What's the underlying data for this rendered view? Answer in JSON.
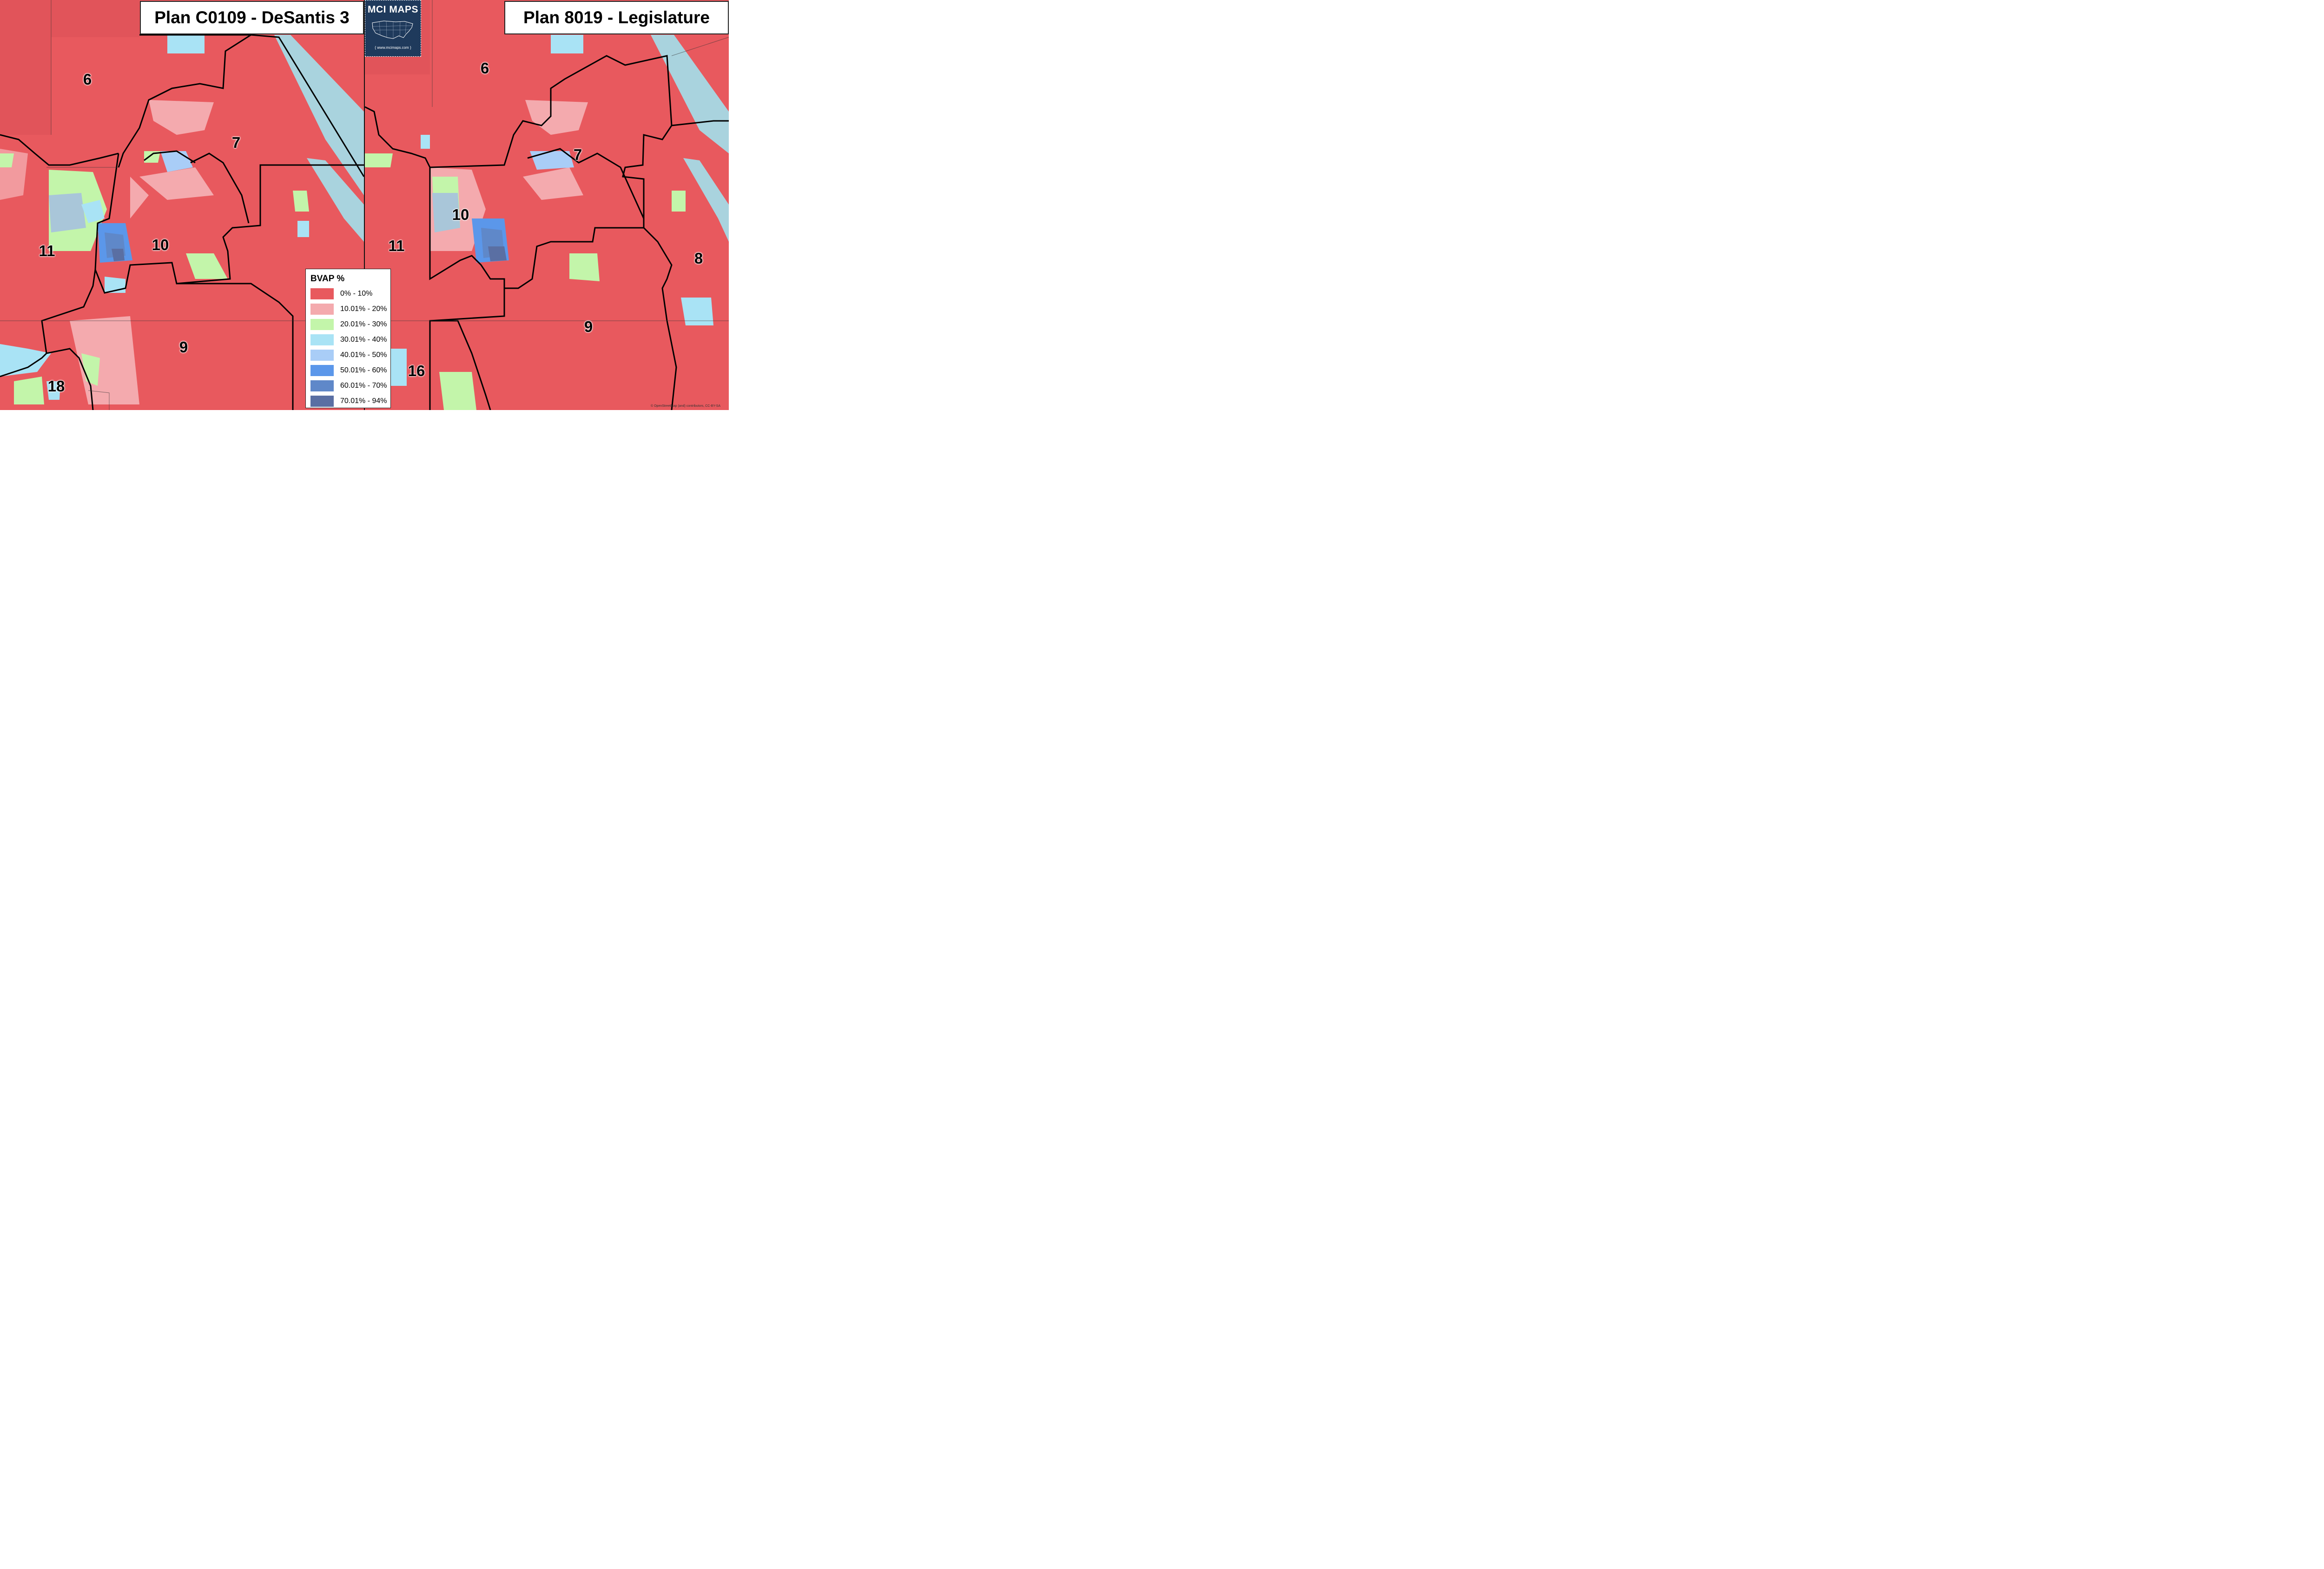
{
  "titles": {
    "left": "Plan C0109 - DeSantis 3",
    "right": "Plan 8019 - Legislature"
  },
  "logo": {
    "title": "MCI MAPS",
    "url": "{ www.mcimaps.com }"
  },
  "left_districts": [
    "6",
    "7",
    "10",
    "11",
    "9",
    "18"
  ],
  "right_districts": [
    "6",
    "7",
    "10",
    "11",
    "8",
    "9",
    "16"
  ],
  "legend": {
    "title": "BVAP  %",
    "items": [
      {
        "label": "0% - 10%",
        "color": "#e8595e"
      },
      {
        "label": "10.01% - 20%",
        "color": "#f4aaae"
      },
      {
        "label": "20.01% - 30%",
        "color": "#c3f5aa"
      },
      {
        "label": "30.01% - 40%",
        "color": "#a9e3f5"
      },
      {
        "label": "40.01% - 50%",
        "color": "#a9cdf7"
      },
      {
        "label": "50.01% - 60%",
        "color": "#5b97ea"
      },
      {
        "label": "60.01% - 70%",
        "color": "#5f88c9"
      },
      {
        "label": "70.01% - 94%",
        "color": "#5a6fa3"
      }
    ]
  },
  "colors": {
    "water": "#a9d3de",
    "base": "#e8595e",
    "boundary": "#000000"
  },
  "credit": "© OpenStreetMap (and) contributors, CC-BY-SA"
}
